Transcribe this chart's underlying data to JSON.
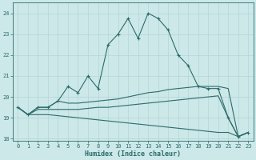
{
  "xlabel": "Humidex (Indice chaleur)",
  "bg_color": "#cce8e8",
  "grid_color": "#b8d8d8",
  "line_color": "#2d6b6b",
  "xlim": [
    -0.5,
    23.5
  ],
  "ylim": [
    17.9,
    24.5
  ],
  "yticks": [
    18,
    19,
    20,
    21,
    22,
    23,
    24
  ],
  "xticks": [
    0,
    1,
    2,
    3,
    4,
    5,
    6,
    7,
    8,
    9,
    10,
    11,
    12,
    13,
    14,
    15,
    16,
    17,
    18,
    19,
    20,
    21,
    22,
    23
  ],
  "curve1_x": [
    0,
    1,
    2,
    3,
    4,
    5,
    6,
    7,
    8,
    9,
    10,
    11,
    12,
    13,
    14,
    15,
    16,
    17,
    18,
    19,
    20,
    21,
    22,
    23
  ],
  "curve1_y": [
    19.5,
    19.15,
    19.5,
    19.5,
    19.8,
    20.5,
    20.2,
    21.0,
    20.4,
    22.5,
    23.0,
    23.75,
    22.8,
    24.0,
    23.75,
    23.2,
    22.0,
    21.5,
    20.5,
    20.4,
    20.4,
    19.0,
    18.1,
    18.3
  ],
  "curve2_x": [
    0,
    1,
    2,
    3,
    4,
    5,
    6,
    7,
    8,
    9,
    10,
    11,
    12,
    13,
    14,
    15,
    16,
    17,
    18,
    19,
    20,
    21,
    22,
    23
  ],
  "curve2_y": [
    19.5,
    19.15,
    19.5,
    19.5,
    19.8,
    19.7,
    19.7,
    19.75,
    19.8,
    19.85,
    19.9,
    20.0,
    20.1,
    20.2,
    20.25,
    20.35,
    20.4,
    20.45,
    20.5,
    20.5,
    20.5,
    20.4,
    18.1,
    18.3
  ],
  "curve3_x": [
    0,
    1,
    2,
    3,
    4,
    5,
    6,
    7,
    8,
    9,
    10,
    11,
    12,
    13,
    14,
    15,
    16,
    17,
    18,
    19,
    20,
    21,
    22,
    23
  ],
  "curve3_y": [
    19.5,
    19.15,
    19.4,
    19.4,
    19.4,
    19.4,
    19.4,
    19.45,
    19.5,
    19.5,
    19.55,
    19.6,
    19.65,
    19.7,
    19.75,
    19.8,
    19.85,
    19.9,
    19.95,
    20.0,
    20.05,
    19.0,
    18.1,
    18.3
  ],
  "curve4_x": [
    0,
    1,
    2,
    3,
    4,
    5,
    6,
    7,
    8,
    9,
    10,
    11,
    12,
    13,
    14,
    15,
    16,
    17,
    18,
    19,
    20,
    21,
    22,
    23
  ],
  "curve4_y": [
    19.5,
    19.15,
    19.15,
    19.15,
    19.1,
    19.05,
    19.0,
    18.95,
    18.9,
    18.85,
    18.8,
    18.75,
    18.7,
    18.65,
    18.6,
    18.55,
    18.5,
    18.45,
    18.4,
    18.35,
    18.3,
    18.3,
    18.1,
    18.3
  ]
}
